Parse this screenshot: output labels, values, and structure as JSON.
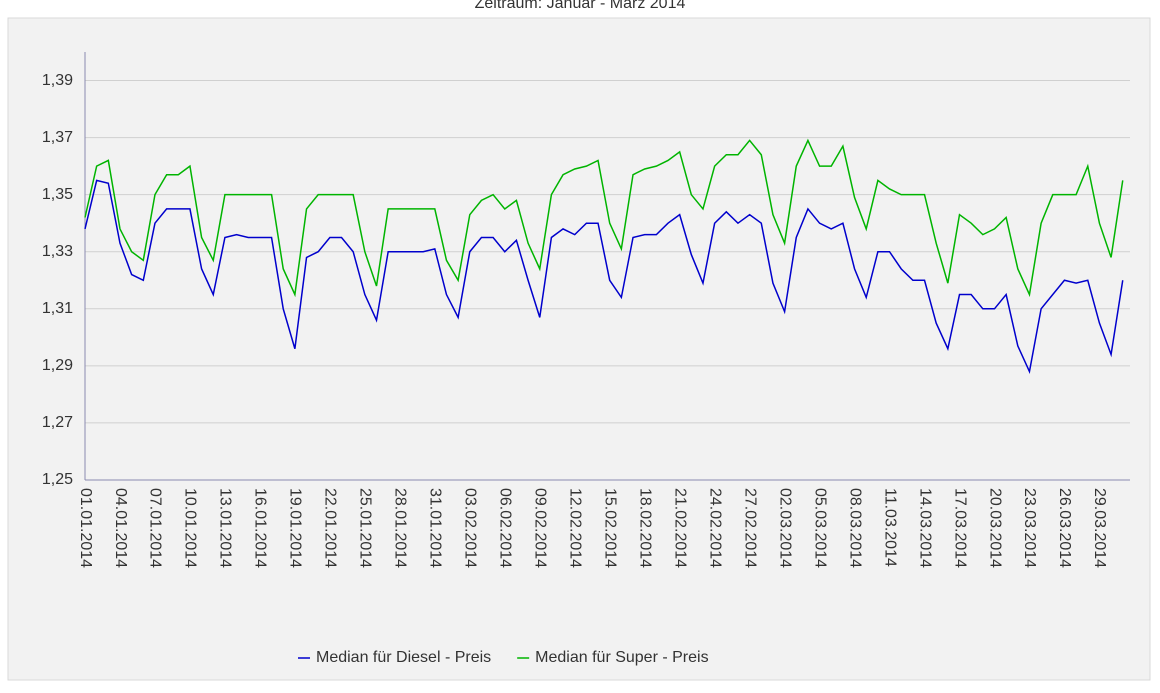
{
  "chart_data": {
    "type": "line",
    "title": "Zeitraum: Januar - März 2014",
    "categories": [
      "01.01.2014",
      null,
      null,
      "04.01.2014",
      null,
      null,
      "07.01.2014",
      null,
      null,
      "10.01.2014",
      null,
      null,
      "13.01.2014",
      null,
      null,
      "16.01.2014",
      null,
      null,
      "19.01.2014",
      null,
      null,
      "22.01.2014",
      null,
      null,
      "25.01.2014",
      null,
      null,
      "28.01.2014",
      null,
      null,
      "31.01.2014",
      null,
      null,
      "03.02.2014",
      null,
      null,
      "06.02.2014",
      null,
      null,
      "09.02.2014",
      null,
      null,
      "12.02.2014",
      null,
      null,
      "15.02.2014",
      null,
      null,
      "18.02.2014",
      null,
      null,
      "21.02.2014",
      null,
      null,
      "24.02.2014",
      null,
      null,
      "27.02.2014",
      null,
      null,
      "02.03.2014",
      null,
      null,
      "05.03.2014",
      null,
      null,
      "08.03.2014",
      null,
      null,
      "11.03.2014",
      null,
      null,
      "14.03.2014",
      null,
      null,
      "17.03.2014",
      null,
      null,
      "20.03.2014",
      null,
      null,
      "23.03.2014",
      null,
      null,
      "26.03.2014",
      null,
      null,
      "29.03.2014",
      null,
      null
    ],
    "series": [
      {
        "name": "Median für Diesel - Preis",
        "color": "#0000cc",
        "values": [
          1.338,
          1.355,
          1.354,
          1.333,
          1.322,
          1.32,
          1.34,
          1.345,
          1.345,
          1.345,
          1.324,
          1.315,
          1.335,
          1.336,
          1.335,
          1.335,
          1.335,
          1.31,
          1.296,
          1.328,
          1.33,
          1.335,
          1.335,
          1.33,
          1.315,
          1.306,
          1.33,
          1.33,
          1.33,
          1.33,
          1.331,
          1.315,
          1.307,
          1.33,
          1.335,
          1.335,
          1.33,
          1.334,
          1.32,
          1.307,
          1.335,
          1.338,
          1.336,
          1.34,
          1.34,
          1.32,
          1.314,
          1.335,
          1.336,
          1.336,
          1.34,
          1.343,
          1.329,
          1.319,
          1.34,
          1.344,
          1.34,
          1.343,
          1.34,
          1.319,
          1.309,
          1.335,
          1.345,
          1.34,
          1.338,
          1.34,
          1.324,
          1.314,
          1.33,
          1.33,
          1.324,
          1.32,
          1.32,
          1.305,
          1.296,
          1.315,
          1.315,
          1.31,
          1.31,
          1.315,
          1.297,
          1.288,
          1.31,
          1.315,
          1.32,
          1.319,
          1.32,
          1.305,
          1.294,
          1.32
        ]
      },
      {
        "name": "Median für Super - Preis",
        "color": "#00b400",
        "values": [
          1.342,
          1.36,
          1.362,
          1.338,
          1.33,
          1.327,
          1.35,
          1.357,
          1.357,
          1.36,
          1.335,
          1.327,
          1.35,
          1.35,
          1.35,
          1.35,
          1.35,
          1.324,
          1.315,
          1.345,
          1.35,
          1.35,
          1.35,
          1.35,
          1.33,
          1.318,
          1.345,
          1.345,
          1.345,
          1.345,
          1.345,
          1.327,
          1.32,
          1.343,
          1.348,
          1.35,
          1.345,
          1.348,
          1.333,
          1.324,
          1.35,
          1.357,
          1.359,
          1.36,
          1.362,
          1.34,
          1.331,
          1.357,
          1.359,
          1.36,
          1.362,
          1.365,
          1.35,
          1.345,
          1.36,
          1.364,
          1.364,
          1.369,
          1.364,
          1.343,
          1.333,
          1.36,
          1.369,
          1.36,
          1.36,
          1.367,
          1.349,
          1.338,
          1.355,
          1.352,
          1.35,
          1.35,
          1.35,
          1.333,
          1.319,
          1.343,
          1.34,
          1.336,
          1.338,
          1.342,
          1.324,
          1.315,
          1.34,
          1.35,
          1.35,
          1.35,
          1.36,
          1.34,
          1.328,
          1.355
        ]
      }
    ],
    "ylim": [
      1.25,
      1.4
    ],
    "yticks": [
      {
        "value": 1.25,
        "label": "1,25"
      },
      {
        "value": 1.27,
        "label": "1,27"
      },
      {
        "value": 1.29,
        "label": "1,29"
      },
      {
        "value": 1.31,
        "label": "1,31"
      },
      {
        "value": 1.33,
        "label": "1,33"
      },
      {
        "value": 1.35,
        "label": "1,35"
      },
      {
        "value": 1.37,
        "label": "1,37"
      },
      {
        "value": 1.39,
        "label": "1,39"
      }
    ],
    "grid": true
  }
}
